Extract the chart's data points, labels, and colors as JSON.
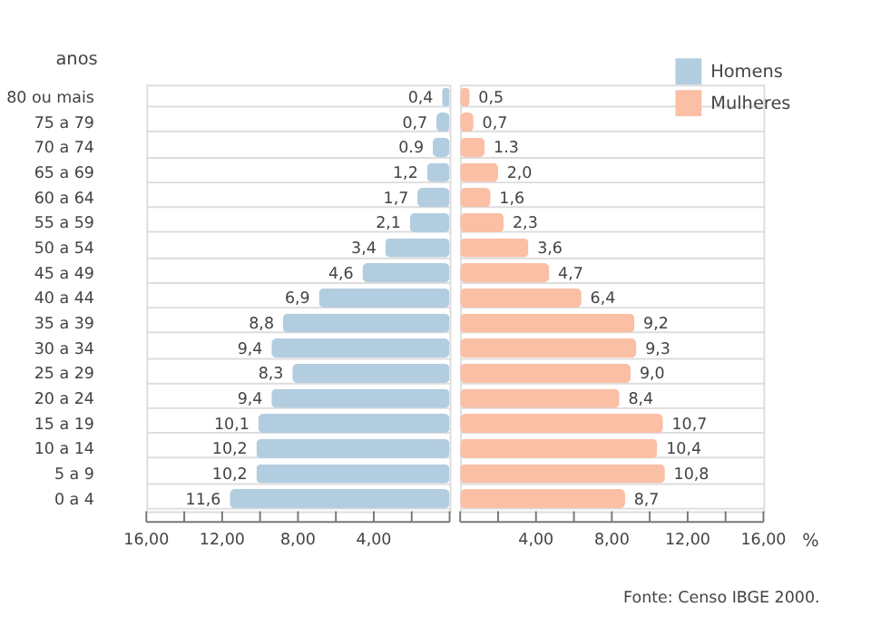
{
  "chart_data": [
    {
      "type": "bar",
      "orientation": "horizontal",
      "ylabel": "anos",
      "categories": [
        "80 ou mais",
        "75 a 79",
        "70 a 74",
        "65 a 69",
        "60 a 64",
        "55 a 59",
        "50 a 54",
        "45 a 49",
        "40 a 44",
        "35 a 39",
        "30 a 34",
        "25 a 29",
        "20 a 24",
        "15 a 19",
        "10 a 14",
        "5 a 9",
        "0 a 4"
      ],
      "series": [
        {
          "name": "Homens",
          "color": "#b3cde0",
          "values": [
            0.4,
            0.7,
            0.9,
            1.2,
            1.7,
            2.1,
            3.4,
            4.6,
            6.9,
            8.8,
            9.4,
            8.3,
            9.4,
            10.1,
            10.2,
            10.2,
            11.6
          ],
          "value_labels": [
            "0,4",
            "0,7",
            "0.9",
            "1,2",
            "1,7",
            "2,1",
            "3,4",
            "4,6",
            "6,9",
            "8,8",
            "9,4",
            "8,3",
            "9,4",
            "10,1",
            "10,2",
            "10,2",
            "11,6"
          ]
        }
      ],
      "xlim": [
        16,
        0
      ],
      "xticks": [
        {
          "value": 16,
          "label": "16,00"
        },
        {
          "value": 14,
          "label": null
        },
        {
          "value": 12,
          "label": "12,00"
        },
        {
          "value": 10,
          "label": null
        },
        {
          "value": 8,
          "label": "8,00"
        },
        {
          "value": 6,
          "label": null
        },
        {
          "value": 4,
          "label": "4,00"
        },
        {
          "value": 2,
          "label": null
        },
        {
          "value": 0,
          "label": null
        }
      ],
      "grid": "y"
    },
    {
      "type": "bar",
      "orientation": "horizontal",
      "xlabel": "%",
      "series": [
        {
          "name": "Mulheres",
          "color": "#fbbfa5",
          "values": [
            0.5,
            0.7,
            1.3,
            2.0,
            1.6,
            2.3,
            3.6,
            4.7,
            6.4,
            9.2,
            9.3,
            9.0,
            8.4,
            10.7,
            10.4,
            10.8,
            8.7
          ],
          "value_labels": [
            "0,5",
            "0,7",
            "1.3",
            "2,0",
            "1,6",
            "2,3",
            "3,6",
            "4,7",
            "6,4",
            "9,2",
            "9,3",
            "9,0",
            "8,4",
            "10,7",
            "10,4",
            "10,8",
            "8,7"
          ]
        }
      ],
      "xlim": [
        0,
        16
      ],
      "xticks": [
        {
          "value": 0,
          "label": null
        },
        {
          "value": 2,
          "label": null
        },
        {
          "value": 4,
          "label": "4,00"
        },
        {
          "value": 6,
          "label": null
        },
        {
          "value": 8,
          "label": "8,00"
        },
        {
          "value": 10,
          "label": null
        },
        {
          "value": 12,
          "label": "12,00"
        },
        {
          "value": 14,
          "label": null
        },
        {
          "value": 16,
          "label": "16,00"
        }
      ],
      "grid": "y",
      "legend": "top right",
      "tick_labels": "x",
      "annotations": [
        "Fonte: Censo IBGE 2000."
      ]
    }
  ]
}
